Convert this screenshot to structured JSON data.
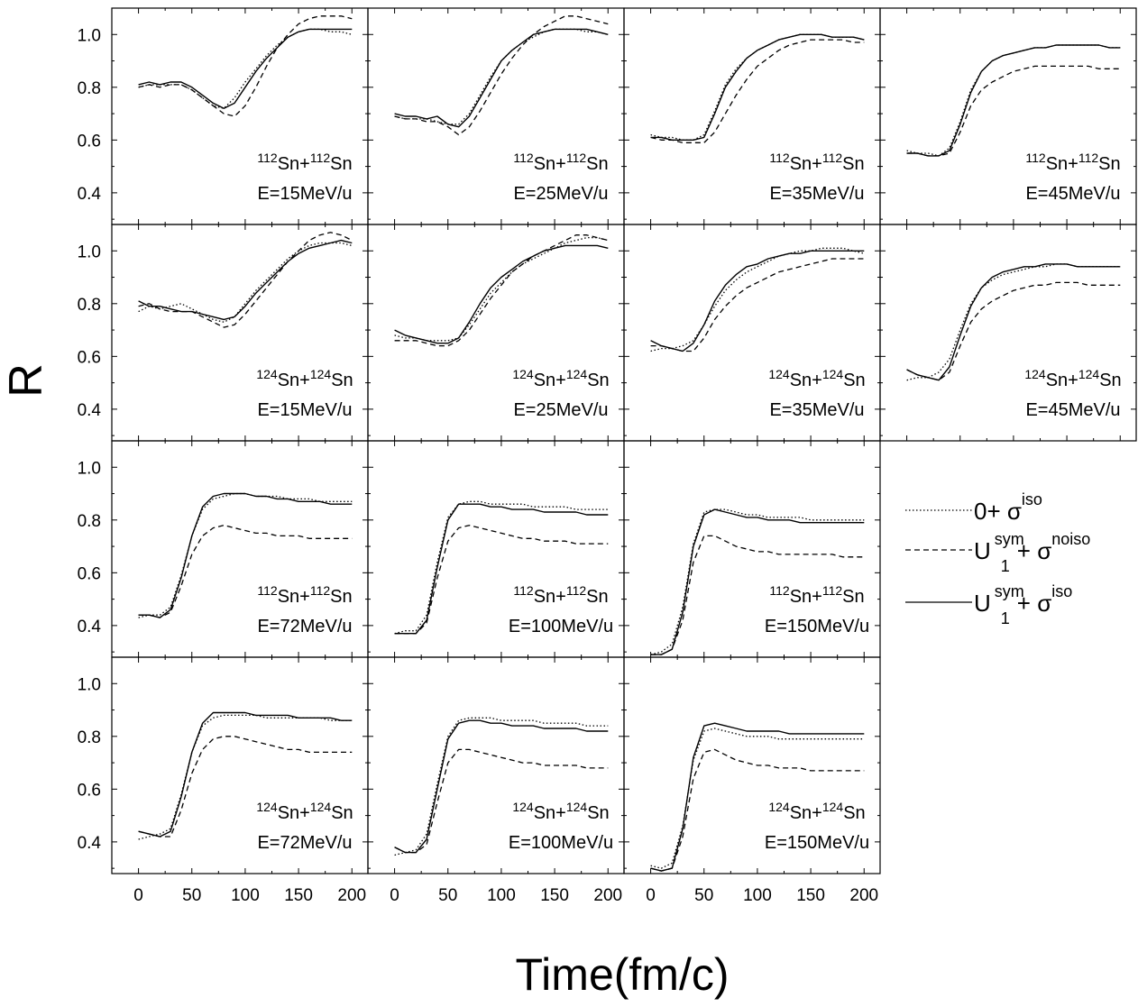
{
  "chart_data": {
    "type": "line",
    "layout": "small-multiples 4x4",
    "xlabel": "Time(fm/c)",
    "ylabel": "R",
    "xlim": [
      -25,
      215
    ],
    "ylim": [
      0.28,
      1.1
    ],
    "xticks": [
      0,
      50,
      100,
      150,
      200
    ],
    "yticks": [
      0.4,
      0.6,
      0.8,
      1.0
    ],
    "ytick_labels": [
      "0.4",
      "0.6",
      "0.8",
      "1.0"
    ],
    "grid": false,
    "legend": {
      "placement": "right, row 3",
      "items": [
        {
          "style": "dotted",
          "text": "0+ σ",
          "sup": "iso"
        },
        {
          "style": "dashed",
          "text": "U",
          "sup1": "sym",
          "sub": "1",
          "text2": "+ σ",
          "sup2": "noiso"
        },
        {
          "style": "solid",
          "text": "U",
          "sup1": "sym",
          "sub": "1",
          "text2": "+ σ",
          "sup2": "iso"
        }
      ]
    },
    "x": [
      0,
      10,
      20,
      30,
      40,
      50,
      60,
      70,
      80,
      90,
      100,
      110,
      120,
      130,
      140,
      150,
      160,
      170,
      180,
      190,
      200
    ],
    "panels": [
      {
        "row": 0,
        "col": 0,
        "mass": "112",
        "energy": "E=15MeV/u",
        "solid": [
          0.81,
          0.82,
          0.81,
          0.82,
          0.82,
          0.8,
          0.77,
          0.74,
          0.72,
          0.74,
          0.8,
          0.86,
          0.91,
          0.95,
          0.99,
          1.01,
          1.02,
          1.02,
          1.02,
          1.02,
          1.02
        ],
        "dotted": [
          0.8,
          0.81,
          0.81,
          0.81,
          0.81,
          0.79,
          0.76,
          0.73,
          0.72,
          0.76,
          0.82,
          0.87,
          0.92,
          0.96,
          0.99,
          1.01,
          1.02,
          1.02,
          1.01,
          1.01,
          1.0
        ],
        "dashed": [
          0.8,
          0.81,
          0.8,
          0.81,
          0.81,
          0.79,
          0.76,
          0.73,
          0.7,
          0.69,
          0.73,
          0.8,
          0.88,
          0.95,
          1.0,
          1.04,
          1.06,
          1.07,
          1.07,
          1.07,
          1.06
        ]
      },
      {
        "row": 0,
        "col": 1,
        "mass": "112",
        "energy": "E=25MeV/u",
        "solid": [
          0.7,
          0.69,
          0.69,
          0.68,
          0.69,
          0.66,
          0.65,
          0.69,
          0.76,
          0.83,
          0.9,
          0.94,
          0.97,
          1.0,
          1.01,
          1.02,
          1.02,
          1.02,
          1.02,
          1.01,
          1.0
        ],
        "dotted": [
          0.69,
          0.68,
          0.68,
          0.68,
          0.67,
          0.66,
          0.66,
          0.7,
          0.77,
          0.84,
          0.9,
          0.94,
          0.97,
          0.99,
          1.01,
          1.02,
          1.02,
          1.02,
          1.01,
          1.01,
          1.0
        ],
        "dashed": [
          0.69,
          0.68,
          0.68,
          0.67,
          0.67,
          0.65,
          0.62,
          0.65,
          0.71,
          0.78,
          0.85,
          0.91,
          0.96,
          1.0,
          1.03,
          1.05,
          1.07,
          1.07,
          1.06,
          1.05,
          1.04
        ]
      },
      {
        "row": 0,
        "col": 2,
        "mass": "112",
        "energy": "E=35MeV/u",
        "solid": [
          0.61,
          0.61,
          0.6,
          0.6,
          0.6,
          0.61,
          0.7,
          0.8,
          0.86,
          0.91,
          0.94,
          0.96,
          0.98,
          0.99,
          1.0,
          1.0,
          1.0,
          0.99,
          0.99,
          0.99,
          0.98
        ],
        "dotted": [
          0.62,
          0.61,
          0.61,
          0.6,
          0.6,
          0.62,
          0.71,
          0.81,
          0.87,
          0.91,
          0.94,
          0.96,
          0.98,
          0.99,
          1.0,
          1.0,
          1.0,
          0.99,
          0.99,
          0.99,
          0.98
        ],
        "dashed": [
          0.61,
          0.6,
          0.6,
          0.59,
          0.59,
          0.59,
          0.63,
          0.7,
          0.77,
          0.83,
          0.88,
          0.91,
          0.94,
          0.96,
          0.97,
          0.98,
          0.98,
          0.98,
          0.98,
          0.97,
          0.97
        ]
      },
      {
        "row": 0,
        "col": 3,
        "mass": "112",
        "energy": "E=45MeV/u",
        "solid": [
          0.55,
          0.55,
          0.54,
          0.54,
          0.56,
          0.66,
          0.78,
          0.86,
          0.9,
          0.92,
          0.93,
          0.94,
          0.95,
          0.95,
          0.96,
          0.96,
          0.96,
          0.96,
          0.96,
          0.95,
          0.95
        ],
        "dotted": [
          0.56,
          0.55,
          0.55,
          0.54,
          0.57,
          0.67,
          0.79,
          0.86,
          0.9,
          0.92,
          0.93,
          0.94,
          0.95,
          0.95,
          0.96,
          0.96,
          0.96,
          0.96,
          0.96,
          0.95,
          0.95
        ],
        "dashed": [
          0.55,
          0.55,
          0.54,
          0.54,
          0.55,
          0.63,
          0.73,
          0.79,
          0.82,
          0.84,
          0.86,
          0.87,
          0.88,
          0.88,
          0.88,
          0.88,
          0.88,
          0.88,
          0.87,
          0.87,
          0.87
        ]
      },
      {
        "row": 1,
        "col": 0,
        "mass": "124",
        "energy": "E=15MeV/u",
        "solid": [
          0.81,
          0.79,
          0.79,
          0.78,
          0.77,
          0.77,
          0.76,
          0.75,
          0.74,
          0.75,
          0.79,
          0.84,
          0.88,
          0.92,
          0.96,
          0.99,
          1.01,
          1.02,
          1.03,
          1.04,
          1.03
        ],
        "dotted": [
          0.77,
          0.79,
          0.78,
          0.79,
          0.8,
          0.78,
          0.76,
          0.74,
          0.73,
          0.75,
          0.8,
          0.85,
          0.89,
          0.93,
          0.97,
          1.0,
          1.02,
          1.03,
          1.03,
          1.03,
          1.02
        ],
        "dashed": [
          0.79,
          0.8,
          0.78,
          0.77,
          0.77,
          0.77,
          0.75,
          0.73,
          0.71,
          0.72,
          0.76,
          0.81,
          0.86,
          0.91,
          0.96,
          1.0,
          1.04,
          1.06,
          1.07,
          1.06,
          1.04
        ]
      },
      {
        "row": 1,
        "col": 1,
        "mass": "124",
        "energy": "E=25MeV/u",
        "solid": [
          0.7,
          0.68,
          0.67,
          0.66,
          0.65,
          0.65,
          0.67,
          0.73,
          0.8,
          0.86,
          0.9,
          0.93,
          0.96,
          0.98,
          1.0,
          1.01,
          1.02,
          1.02,
          1.02,
          1.02,
          1.01
        ],
        "dotted": [
          0.68,
          0.67,
          0.67,
          0.66,
          0.66,
          0.66,
          0.67,
          0.72,
          0.78,
          0.84,
          0.88,
          0.92,
          0.95,
          0.97,
          0.99,
          1.01,
          1.03,
          1.04,
          1.05,
          1.05,
          1.04
        ],
        "dashed": [
          0.66,
          0.66,
          0.66,
          0.65,
          0.64,
          0.64,
          0.66,
          0.7,
          0.76,
          0.82,
          0.87,
          0.92,
          0.95,
          0.98,
          1.0,
          1.02,
          1.04,
          1.06,
          1.06,
          1.05,
          1.04
        ]
      },
      {
        "row": 1,
        "col": 2,
        "mass": "124",
        "energy": "E=35MeV/u",
        "solid": [
          0.66,
          0.64,
          0.63,
          0.62,
          0.65,
          0.72,
          0.81,
          0.87,
          0.91,
          0.94,
          0.95,
          0.97,
          0.98,
          0.99,
          0.99,
          1.0,
          1.0,
          1.0,
          1.0,
          1.0,
          1.0
        ],
        "dotted": [
          0.62,
          0.63,
          0.63,
          0.64,
          0.66,
          0.72,
          0.79,
          0.85,
          0.89,
          0.92,
          0.94,
          0.96,
          0.98,
          0.99,
          1.0,
          1.0,
          1.01,
          1.01,
          1.01,
          1.0,
          0.99
        ],
        "dashed": [
          0.64,
          0.64,
          0.63,
          0.62,
          0.62,
          0.67,
          0.74,
          0.79,
          0.83,
          0.86,
          0.88,
          0.9,
          0.92,
          0.93,
          0.94,
          0.95,
          0.96,
          0.97,
          0.97,
          0.97,
          0.97
        ]
      },
      {
        "row": 1,
        "col": 3,
        "mass": "124",
        "energy": "E=45MeV/u",
        "solid": [
          0.55,
          0.53,
          0.52,
          0.51,
          0.56,
          0.68,
          0.79,
          0.86,
          0.9,
          0.92,
          0.93,
          0.94,
          0.94,
          0.95,
          0.95,
          0.95,
          0.94,
          0.94,
          0.94,
          0.94,
          0.94
        ],
        "dotted": [
          0.51,
          0.52,
          0.52,
          0.54,
          0.59,
          0.7,
          0.8,
          0.86,
          0.89,
          0.91,
          0.92,
          0.93,
          0.94,
          0.94,
          0.95,
          0.95,
          0.94,
          0.94,
          0.94,
          0.94,
          0.94
        ],
        "dashed": [
          0.55,
          0.53,
          0.52,
          0.51,
          0.54,
          0.64,
          0.73,
          0.78,
          0.81,
          0.83,
          0.85,
          0.86,
          0.87,
          0.87,
          0.88,
          0.88,
          0.88,
          0.87,
          0.87,
          0.87,
          0.87
        ]
      },
      {
        "row": 2,
        "col": 0,
        "mass": "112",
        "energy": "E=72MeV/u",
        "solid": [
          0.44,
          0.44,
          0.43,
          0.46,
          0.58,
          0.74,
          0.85,
          0.89,
          0.9,
          0.9,
          0.9,
          0.89,
          0.89,
          0.88,
          0.88,
          0.87,
          0.87,
          0.87,
          0.86,
          0.86,
          0.86
        ],
        "dotted": [
          0.43,
          0.44,
          0.44,
          0.47,
          0.59,
          0.74,
          0.84,
          0.88,
          0.89,
          0.9,
          0.9,
          0.89,
          0.89,
          0.89,
          0.88,
          0.88,
          0.88,
          0.87,
          0.87,
          0.87,
          0.87
        ],
        "dashed": [
          0.44,
          0.44,
          0.43,
          0.45,
          0.55,
          0.67,
          0.74,
          0.77,
          0.78,
          0.77,
          0.76,
          0.75,
          0.75,
          0.74,
          0.74,
          0.74,
          0.73,
          0.73,
          0.73,
          0.73,
          0.73
        ]
      },
      {
        "row": 2,
        "col": 1,
        "mass": "112",
        "energy": "E=100MeV/u",
        "solid": [
          0.37,
          0.37,
          0.37,
          0.42,
          0.62,
          0.8,
          0.86,
          0.86,
          0.86,
          0.85,
          0.85,
          0.84,
          0.84,
          0.84,
          0.83,
          0.83,
          0.83,
          0.83,
          0.82,
          0.82,
          0.82
        ],
        "dotted": [
          0.37,
          0.38,
          0.38,
          0.44,
          0.64,
          0.81,
          0.86,
          0.87,
          0.87,
          0.86,
          0.86,
          0.86,
          0.86,
          0.85,
          0.85,
          0.85,
          0.85,
          0.84,
          0.84,
          0.84,
          0.84
        ],
        "dashed": [
          0.37,
          0.37,
          0.37,
          0.41,
          0.58,
          0.72,
          0.77,
          0.78,
          0.77,
          0.76,
          0.75,
          0.74,
          0.73,
          0.73,
          0.72,
          0.72,
          0.72,
          0.71,
          0.71,
          0.71,
          0.71
        ]
      },
      {
        "row": 2,
        "col": 2,
        "mass": "112",
        "energy": "E=150MeV/u",
        "solid": [
          0.29,
          0.29,
          0.31,
          0.45,
          0.7,
          0.82,
          0.84,
          0.83,
          0.82,
          0.81,
          0.81,
          0.8,
          0.8,
          0.8,
          0.79,
          0.79,
          0.79,
          0.79,
          0.79,
          0.79,
          0.79
        ],
        "dotted": [
          0.29,
          0.3,
          0.33,
          0.47,
          0.71,
          0.83,
          0.84,
          0.84,
          0.83,
          0.82,
          0.82,
          0.81,
          0.81,
          0.81,
          0.81,
          0.8,
          0.8,
          0.8,
          0.8,
          0.8,
          0.8
        ],
        "dashed": [
          0.29,
          0.29,
          0.31,
          0.42,
          0.64,
          0.74,
          0.74,
          0.72,
          0.7,
          0.69,
          0.68,
          0.68,
          0.67,
          0.67,
          0.67,
          0.67,
          0.67,
          0.67,
          0.66,
          0.66,
          0.66
        ]
      },
      {
        "row": 3,
        "col": 0,
        "mass": "124",
        "energy": "E=72MeV/u",
        "solid": [
          0.44,
          0.43,
          0.42,
          0.44,
          0.57,
          0.74,
          0.85,
          0.89,
          0.89,
          0.89,
          0.89,
          0.88,
          0.88,
          0.88,
          0.88,
          0.87,
          0.87,
          0.87,
          0.87,
          0.86,
          0.86
        ],
        "dotted": [
          0.41,
          0.42,
          0.43,
          0.45,
          0.58,
          0.74,
          0.84,
          0.87,
          0.88,
          0.88,
          0.88,
          0.88,
          0.87,
          0.87,
          0.87,
          0.87,
          0.87,
          0.87,
          0.86,
          0.86,
          0.86
        ],
        "dashed": [
          0.44,
          0.43,
          0.42,
          0.42,
          0.52,
          0.66,
          0.75,
          0.79,
          0.8,
          0.8,
          0.79,
          0.78,
          0.77,
          0.76,
          0.75,
          0.75,
          0.74,
          0.74,
          0.74,
          0.74,
          0.74
        ]
      },
      {
        "row": 3,
        "col": 1,
        "mass": "124",
        "energy": "E=100MeV/u",
        "solid": [
          0.38,
          0.36,
          0.36,
          0.41,
          0.6,
          0.79,
          0.85,
          0.86,
          0.86,
          0.85,
          0.85,
          0.84,
          0.84,
          0.84,
          0.83,
          0.83,
          0.83,
          0.83,
          0.82,
          0.82,
          0.82
        ],
        "dotted": [
          0.35,
          0.36,
          0.37,
          0.43,
          0.62,
          0.8,
          0.86,
          0.87,
          0.87,
          0.87,
          0.86,
          0.86,
          0.86,
          0.86,
          0.85,
          0.85,
          0.85,
          0.85,
          0.84,
          0.84,
          0.84
        ],
        "dashed": [
          0.38,
          0.36,
          0.36,
          0.39,
          0.55,
          0.7,
          0.75,
          0.75,
          0.74,
          0.73,
          0.72,
          0.71,
          0.7,
          0.7,
          0.69,
          0.69,
          0.69,
          0.69,
          0.68,
          0.68,
          0.68
        ]
      },
      {
        "row": 3,
        "col": 2,
        "mass": "124",
        "energy": "E=150MeV/u",
        "solid": [
          0.3,
          0.29,
          0.3,
          0.45,
          0.72,
          0.84,
          0.85,
          0.84,
          0.83,
          0.82,
          0.82,
          0.82,
          0.82,
          0.81,
          0.81,
          0.81,
          0.81,
          0.81,
          0.81,
          0.81,
          0.81
        ],
        "dotted": [
          0.31,
          0.3,
          0.32,
          0.46,
          0.71,
          0.82,
          0.83,
          0.82,
          0.81,
          0.8,
          0.8,
          0.8,
          0.79,
          0.79,
          0.79,
          0.79,
          0.79,
          0.79,
          0.79,
          0.79,
          0.79
        ],
        "dashed": [
          0.3,
          0.29,
          0.3,
          0.42,
          0.64,
          0.74,
          0.75,
          0.73,
          0.71,
          0.7,
          0.69,
          0.69,
          0.68,
          0.68,
          0.68,
          0.67,
          0.67,
          0.67,
          0.67,
          0.67,
          0.67
        ]
      }
    ]
  }
}
